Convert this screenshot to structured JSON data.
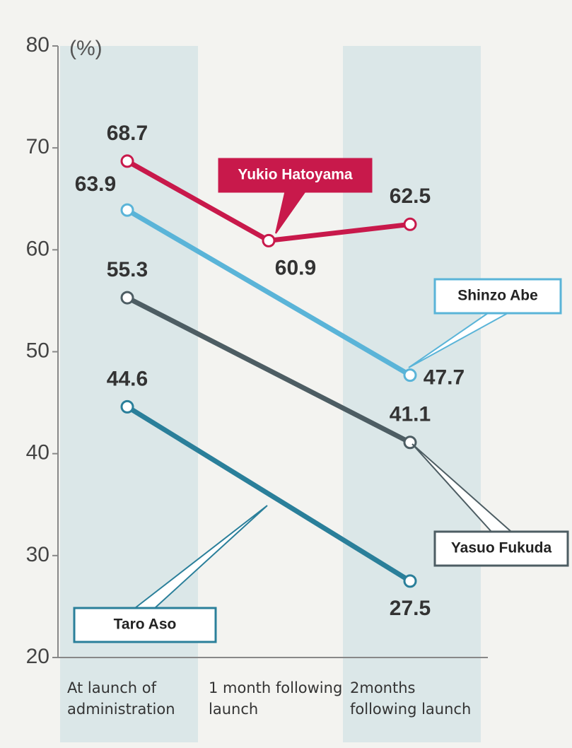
{
  "chart_data": {
    "type": "line",
    "y_label": "(%)",
    "categories": [
      "At launch of administration",
      "1 month following launch",
      "2months following launch"
    ],
    "series": [
      {
        "name": "Yukio Hatoyama",
        "color": "#c8194b",
        "values": [
          68.7,
          60.9,
          62.5
        ]
      },
      {
        "name": "Shinzo Abe",
        "color": "#5ab4d8",
        "values": [
          63.9,
          null,
          47.7
        ]
      },
      {
        "name": "Yasuo Fukuda",
        "color": "#4d5d63",
        "values": [
          55.3,
          null,
          41.1
        ]
      },
      {
        "name": "Taro Aso",
        "color": "#2a7f9a",
        "values": [
          44.6,
          null,
          27.5
        ]
      }
    ],
    "ylim": [
      20,
      80
    ],
    "yticks": [
      20,
      30,
      40,
      50,
      60,
      70,
      80
    ]
  }
}
